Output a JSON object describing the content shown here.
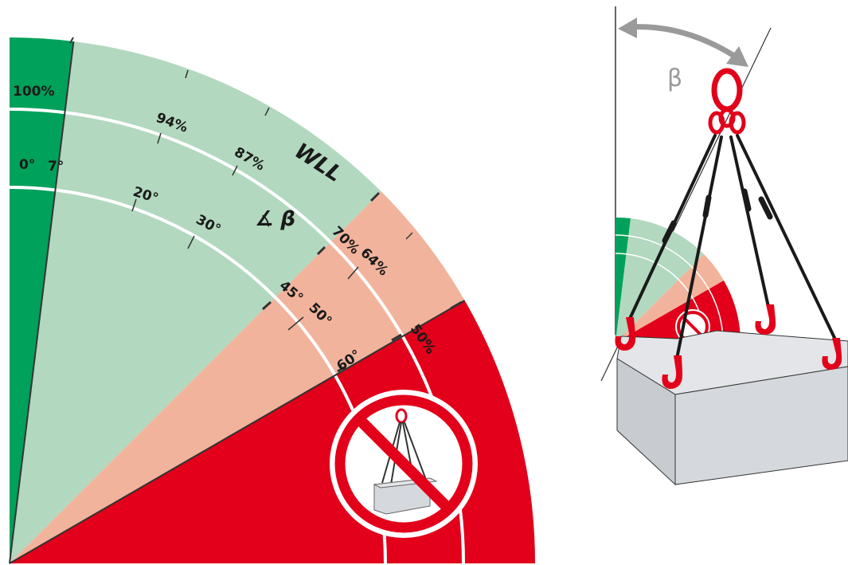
{
  "diagram": {
    "colors": {
      "dark_green": "#00a15b",
      "light_green": "#b2d8bf",
      "salmon": "#f2b39c",
      "red": "#e2001a",
      "white": "#ffffff",
      "arc_line": "#ffffff",
      "tick": "#333333",
      "box_front": "#d5d8dc",
      "box_top": "#e3e5e8",
      "box_side": "#c8ccd0",
      "chain": "#1a1a1a",
      "hook_red": "#e2001a",
      "grey_arrow": "#9a9a9a"
    },
    "left_chart": {
      "percent_labels": {
        "p100": "100%",
        "p94": "94%",
        "p87": "87%",
        "p70": "70%",
        "p64": "64%",
        "p50": "50%"
      },
      "wll_label": "WLL",
      "angle_symbol_label": "∡ β",
      "angle_labels": {
        "a0": "0°",
        "a7": "7°",
        "a20": "20°",
        "a30": "30°",
        "a45": "45°",
        "a50": "50°",
        "a60": "60°"
      },
      "prohibition_icon": "prohibited-sling-icon"
    },
    "right_illustration": {
      "angle_label": "β",
      "icons": [
        "master-link-icon",
        "chain-leg-icon",
        "hook-icon",
        "load-box-icon",
        "angle-arrow-icon"
      ]
    }
  }
}
